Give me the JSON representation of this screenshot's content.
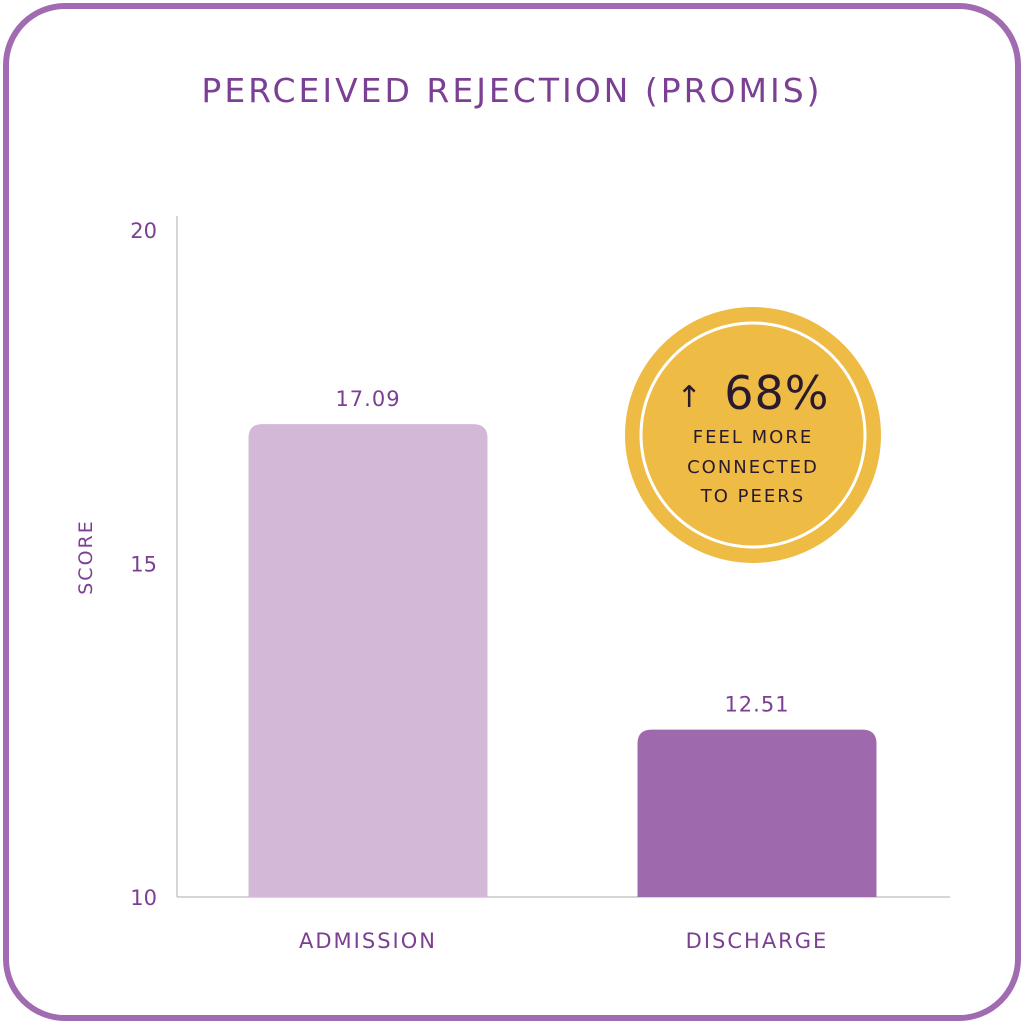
{
  "chart_data": {
    "type": "bar",
    "title": "PERCEIVED REJECTION (PROMIS)",
    "ylabel": "SCORE",
    "xlabel": "",
    "ylim": [
      10,
      20
    ],
    "yticks": [
      10,
      15,
      20
    ],
    "grid": false,
    "categories": [
      "ADMISSION",
      "DISCHARGE"
    ],
    "values": [
      17.09,
      12.51
    ],
    "value_labels": [
      "17.09",
      "12.51"
    ],
    "colors": [
      "#d4b8d8",
      "#9e6aad"
    ],
    "text_color": "#7b3f93"
  },
  "callout": {
    "arrow_glyph": "↑",
    "value": "68%",
    "lines": [
      "FEEL MORE",
      "CONNECTED",
      "TO PEERS"
    ],
    "fill_color": "#eebb45",
    "text_color": "#2a1a2e"
  },
  "frame_color": "#a06bb0"
}
